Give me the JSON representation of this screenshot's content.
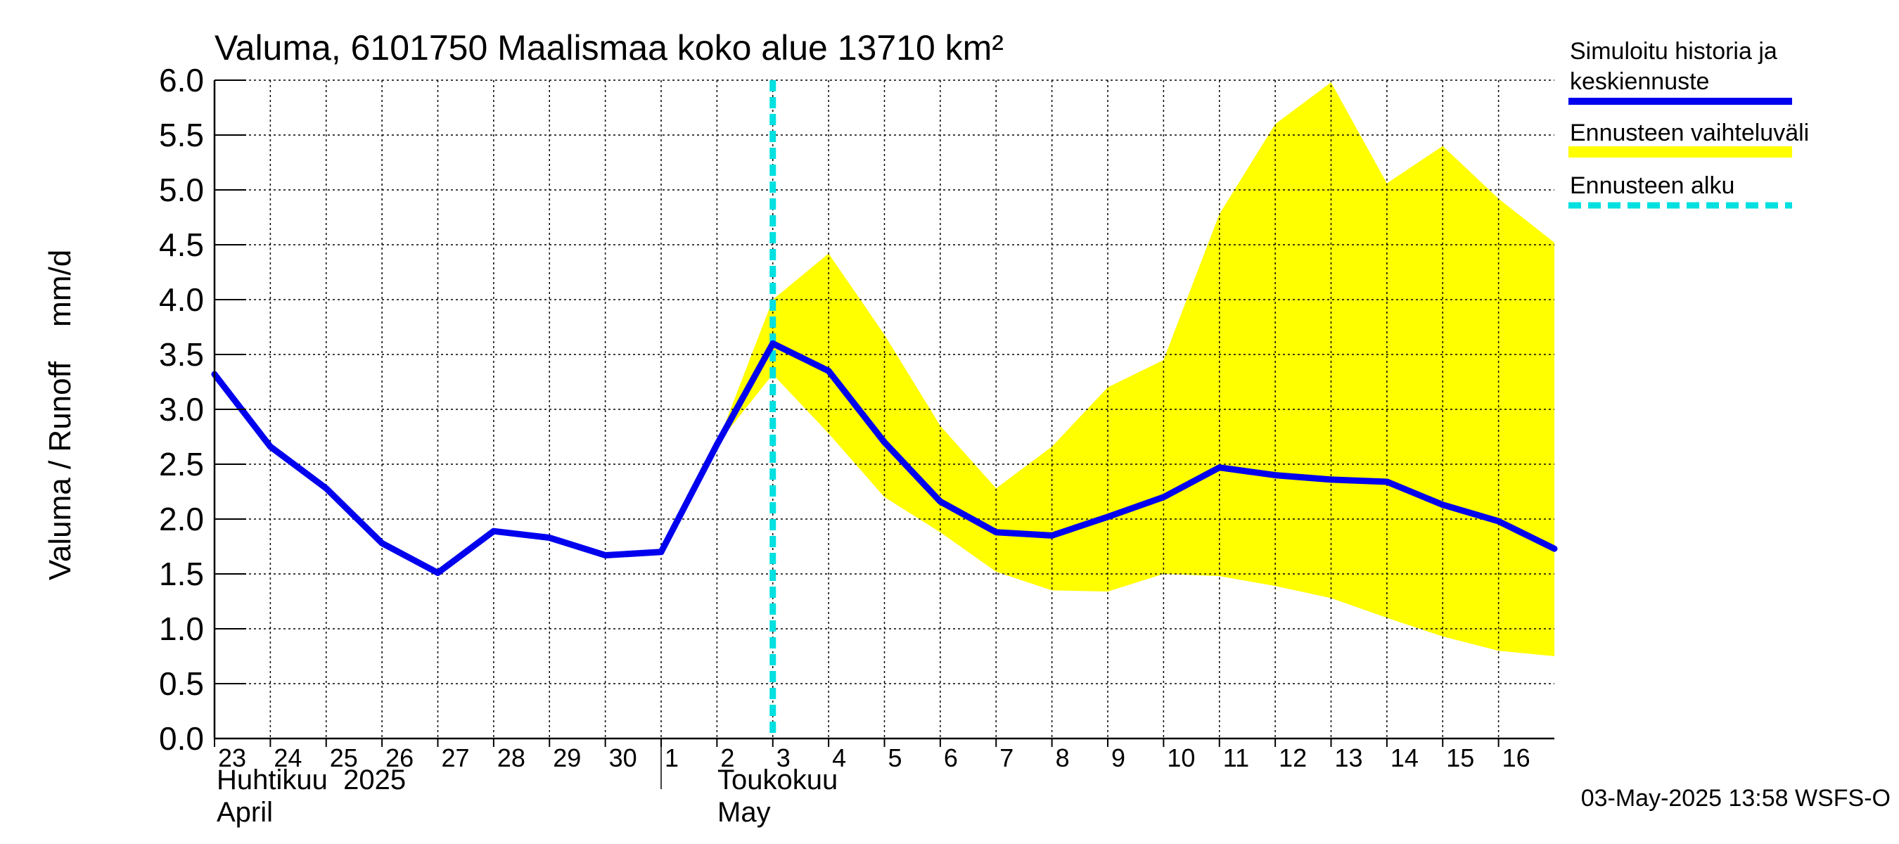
{
  "chart_data": {
    "type": "line",
    "title": "Valuma, 6101750 Maalismaa koko alue 13710 km²",
    "ylabel": "Valuma / Runoff    mm/d",
    "ylim": [
      0.0,
      6.0
    ],
    "yticks": [
      "0.0",
      "0.5",
      "1.0",
      "1.5",
      "2.0",
      "2.5",
      "3.0",
      "3.5",
      "4.0",
      "4.5",
      "5.0",
      "5.5",
      "6.0"
    ],
    "xlim": [
      "2025-04-23",
      "2025-05-17"
    ],
    "xtick_labels": [
      "23",
      "24",
      "25",
      "26",
      "27",
      "28",
      "29",
      "30",
      "1",
      "2",
      "3",
      "4",
      "5",
      "6",
      "7",
      "8",
      "9",
      "10",
      "11",
      "12",
      "13",
      "14",
      "15",
      "16"
    ],
    "month_labels": [
      {
        "fi": "Huhtikuu  2025",
        "en": "April"
      },
      {
        "fi": "Toukokuu",
        "en": "May"
      }
    ],
    "grid": true,
    "forecast_start": "2025-05-03",
    "series": [
      {
        "name": "Simuloitu historia ja keskiennuste",
        "color": "#0000ee",
        "x": [
          "2025-04-23",
          "2025-04-24",
          "2025-04-25",
          "2025-04-26",
          "2025-04-27",
          "2025-04-28",
          "2025-04-29",
          "2025-04-30",
          "2025-05-01",
          "2025-05-02",
          "2025-05-03",
          "2025-05-04",
          "2025-05-05",
          "2025-05-06",
          "2025-05-07",
          "2025-05-08",
          "2025-05-09",
          "2025-05-10",
          "2025-05-11",
          "2025-05-12",
          "2025-05-13",
          "2025-05-14",
          "2025-05-15",
          "2025-05-16",
          "2025-05-17"
        ],
        "values": [
          3.32,
          2.66,
          2.28,
          1.78,
          1.51,
          1.89,
          1.83,
          1.67,
          1.7,
          2.68,
          3.6,
          3.35,
          2.7,
          2.16,
          1.88,
          1.85,
          2.02,
          2.2,
          2.47,
          2.4,
          2.36,
          2.34,
          2.13,
          1.98,
          1.73
        ]
      }
    ],
    "band": {
      "name": "Ennusteen vaihteluväli",
      "color": "#ffff00",
      "x": [
        "2025-05-02",
        "2025-05-03",
        "2025-05-04",
        "2025-05-05",
        "2025-05-06",
        "2025-05-07",
        "2025-05-08",
        "2025-05-09",
        "2025-05-10",
        "2025-05-11",
        "2025-05-12",
        "2025-05-13",
        "2025-05-14",
        "2025-05-15",
        "2025-05-16",
        "2025-05-17"
      ],
      "upper": [
        2.68,
        4.0,
        4.42,
        3.68,
        2.85,
        2.28,
        2.66,
        3.2,
        3.45,
        4.78,
        5.6,
        5.98,
        5.06,
        5.4,
        4.92,
        4.52
      ],
      "lower": [
        2.68,
        3.32,
        2.78,
        2.2,
        1.88,
        1.52,
        1.35,
        1.34,
        1.5,
        1.48,
        1.39,
        1.28,
        1.1,
        0.93,
        0.8,
        0.75
      ]
    },
    "legend": {
      "placement": "right",
      "entries": [
        {
          "line1": "Simuloitu historia ja",
          "line2": "keskiennuste",
          "color": "#0000ee",
          "style": "solid"
        },
        {
          "line1": "Ennusteen vaihteluväli",
          "line2": "",
          "color": "#ffff00",
          "style": "band"
        },
        {
          "line1": "Ennusteen alku",
          "line2": "",
          "color": "#00e0e0",
          "style": "dashed"
        }
      ]
    },
    "footer": "03-May-2025 13:58 WSFS-O"
  }
}
